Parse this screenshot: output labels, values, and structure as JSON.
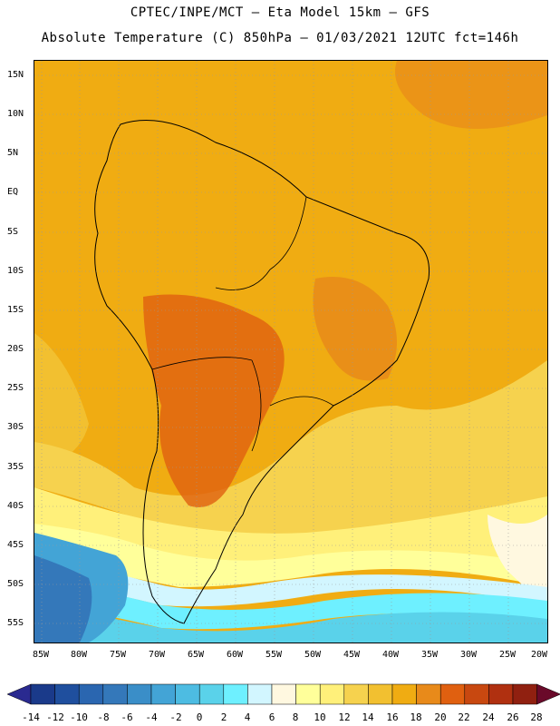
{
  "title": {
    "line1": "CPTEC/INPE/MCT –  Eta Model 15km – GFS",
    "line2": "Absolute Temperature (C) 850hPa – 01/03/2021 12UTC fct=146h"
  },
  "map": {
    "lat_labels": [
      "15N",
      "10N",
      "5N",
      "EQ",
      "5S",
      "10S",
      "15S",
      "20S",
      "25S",
      "30S",
      "35S",
      "40S",
      "45S",
      "50S",
      "55S"
    ],
    "lon_labels": [
      "85W",
      "80W",
      "75W",
      "70W",
      "65W",
      "60W",
      "55W",
      "50W",
      "45W",
      "40W",
      "35W",
      "30W",
      "25W",
      "20W"
    ],
    "background_color": "#f0ac12"
  },
  "colorbar": {
    "labels": [
      "-14",
      "-12",
      "-10",
      "-8",
      "-6",
      "-4",
      "-2",
      "0",
      "2",
      "4",
      "6",
      "8",
      "10",
      "12",
      "14",
      "16",
      "18",
      "20",
      "22",
      "24",
      "26",
      "28"
    ],
    "colors": [
      "#1a3a8a",
      "#1f4f9e",
      "#2a66b0",
      "#3478ba",
      "#3a8ec8",
      "#43a4d6",
      "#4dbce2",
      "#5ad2ea",
      "#6ef0ff",
      "#d2f6ff",
      "#fff8e0",
      "#ffff9a",
      "#fff07a",
      "#f6d24e",
      "#f2c030",
      "#f0ac12",
      "#e88a1a",
      "#e06010",
      "#c84810",
      "#b03010",
      "#902010"
    ],
    "low_arrow_color": "#2a2a90",
    "high_arrow_color": "#6a0a2a"
  }
}
